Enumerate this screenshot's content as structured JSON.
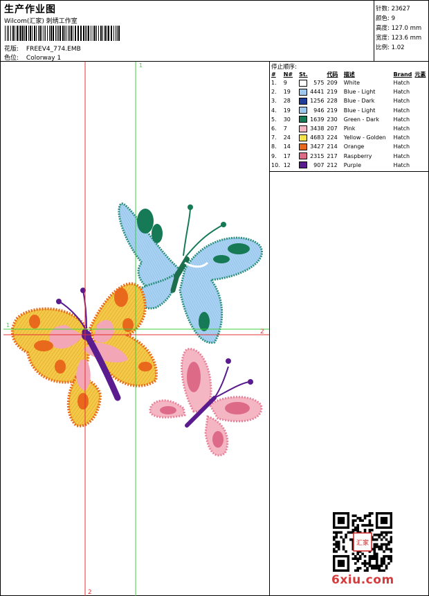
{
  "header": {
    "title": "生产作业图",
    "subtitle": "Wilcom(汇家) 刺绣工作室",
    "design_label": "花版:",
    "design_value": "FREEV4_774.EMB",
    "colorway_label": "色位:",
    "colorway_value": "Colorway 1"
  },
  "stats": [
    {
      "label": "针数:",
      "value": "23627"
    },
    {
      "label": "颜色:",
      "value": "9"
    },
    {
      "label": "高度:",
      "value": "127.0 mm"
    },
    {
      "label": "宽度:",
      "value": "123.6 mm"
    },
    {
      "label": "比例:",
      "value": "1.02"
    }
  ],
  "stop_sequence": {
    "caption": "停止顺序:",
    "headers": [
      "#",
      "N#",
      "St.",
      "代码",
      "描述",
      "Brand",
      "元素"
    ],
    "rows": [
      {
        "n": "1.",
        "nn": "9",
        "st": "575",
        "color": "#ffffff",
        "code": "209",
        "desc": "White",
        "brand": "Hatch"
      },
      {
        "n": "2.",
        "nn": "19",
        "st": "4441",
        "color": "#9fc8ee",
        "code": "219",
        "desc": "Blue - Light",
        "brand": "Hatch"
      },
      {
        "n": "3.",
        "nn": "28",
        "st": "1256",
        "color": "#1f3e9a",
        "code": "228",
        "desc": "Blue - Dark",
        "brand": "Hatch"
      },
      {
        "n": "4.",
        "nn": "19",
        "st": "946",
        "color": "#9fc8ee",
        "code": "219",
        "desc": "Blue - Light",
        "brand": "Hatch"
      },
      {
        "n": "5.",
        "nn": "30",
        "st": "1639",
        "color": "#157a55",
        "code": "230",
        "desc": "Green - Dark",
        "brand": "Hatch"
      },
      {
        "n": "6.",
        "nn": "7",
        "st": "3438",
        "color": "#f4b6c2",
        "code": "207",
        "desc": "Pink",
        "brand": "Hatch"
      },
      {
        "n": "7.",
        "nn": "24",
        "st": "4683",
        "color": "#f6e24a",
        "code": "224",
        "desc": "Yellow - Golden",
        "brand": "Hatch"
      },
      {
        "n": "8.",
        "nn": "14",
        "st": "3427",
        "color": "#e8691b",
        "code": "214",
        "desc": "Orange",
        "brand": "Hatch"
      },
      {
        "n": "9.",
        "nn": "17",
        "st": "2315",
        "color": "#dd6a86",
        "code": "217",
        "desc": "Raspberry",
        "brand": "Hatch"
      },
      {
        "n": "10.",
        "nn": "12",
        "st": "907",
        "color": "#5a1b8e",
        "code": "212",
        "desc": "Purple",
        "brand": "Hatch"
      }
    ]
  },
  "guides": {
    "v_red": "2",
    "v_green": "1",
    "h_green": "1",
    "h_red": "2"
  },
  "qr_stamp": "汇家",
  "watermark": "6xiu.com"
}
